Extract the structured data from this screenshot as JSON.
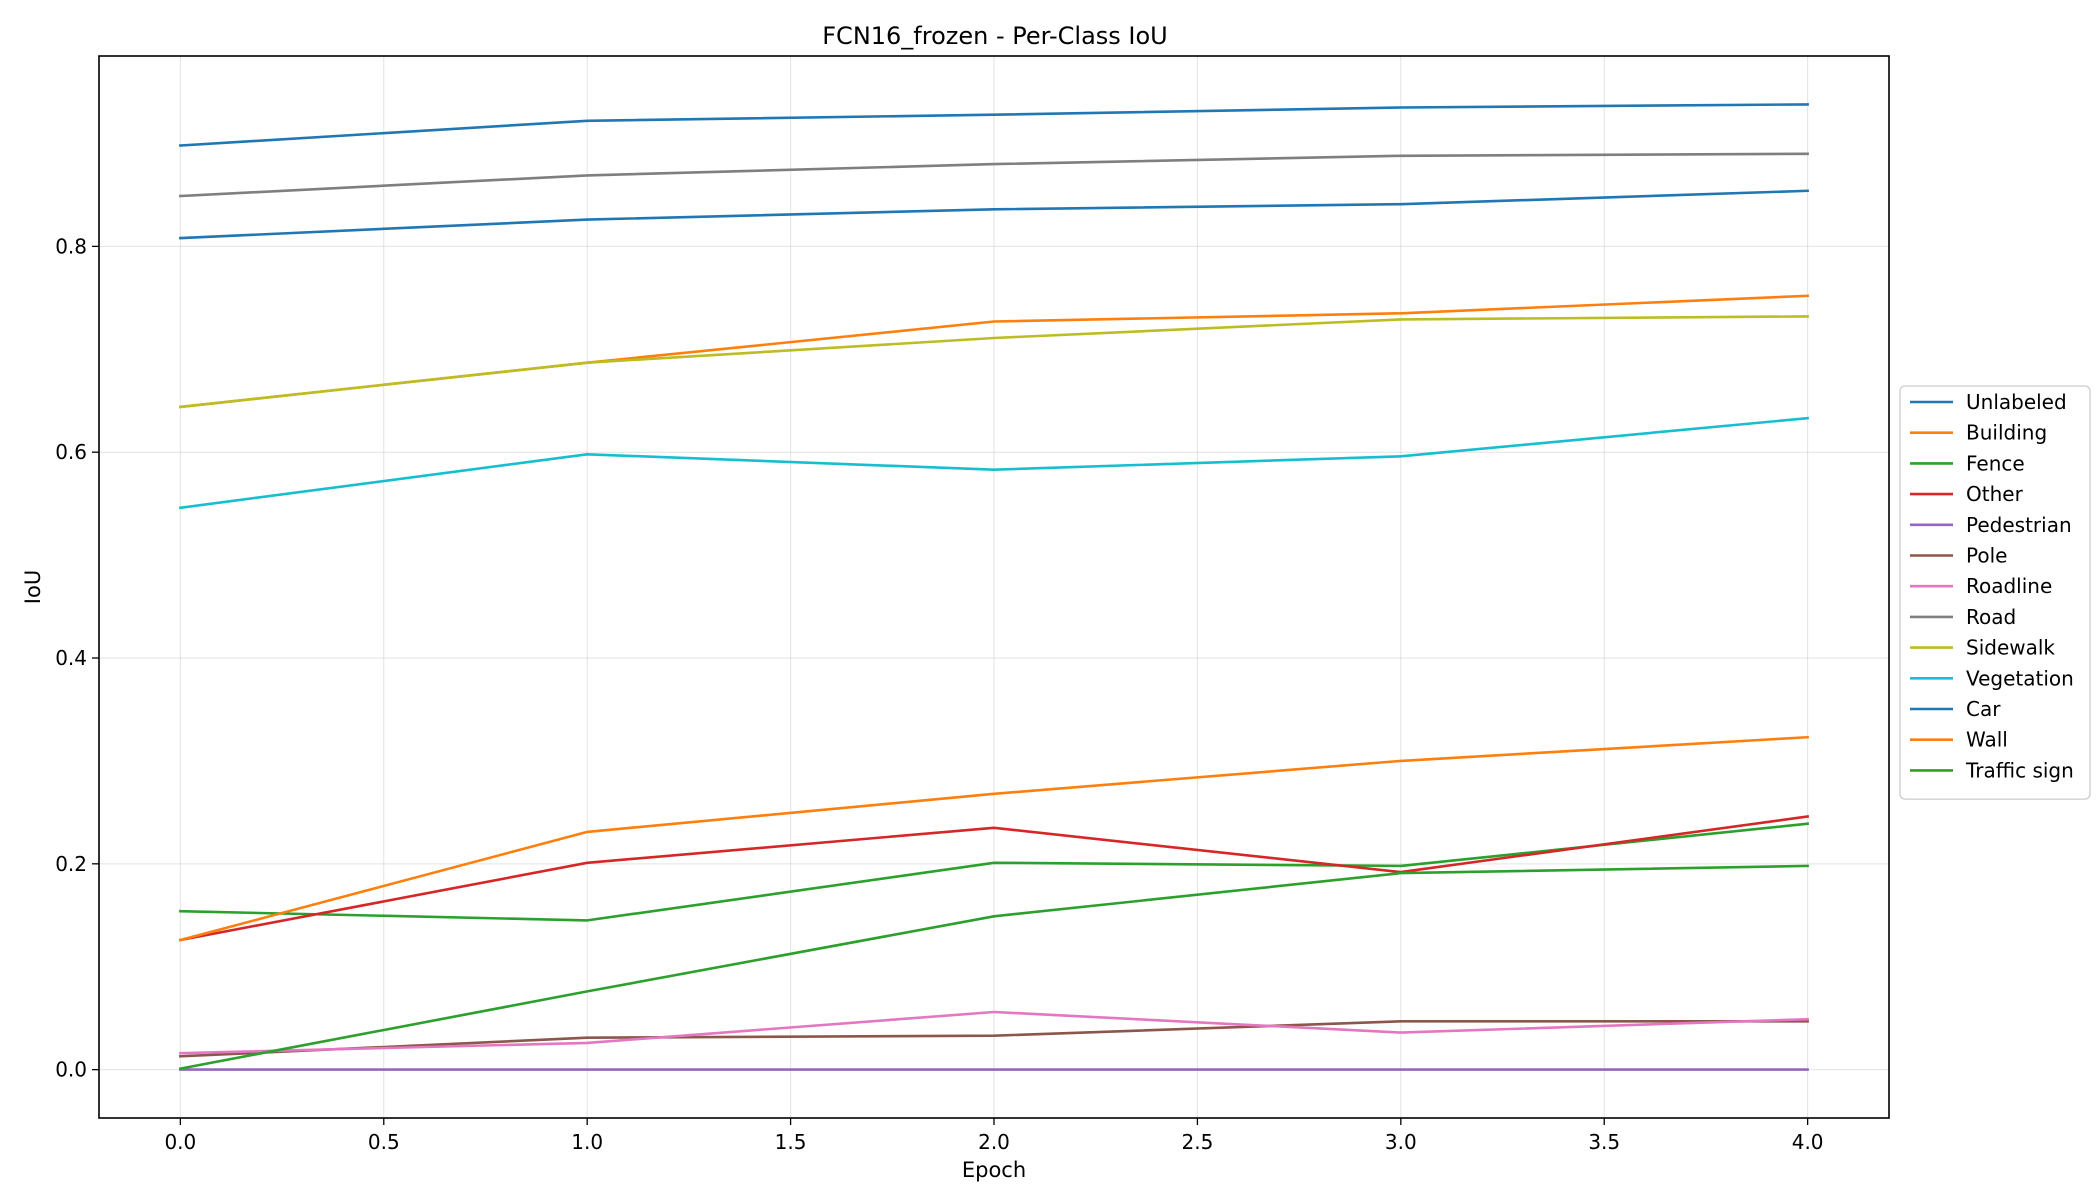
{
  "chart_data": {
    "type": "line",
    "title": "FCN16_frozen - Per-Class IoU",
    "xlabel": "Epoch",
    "ylabel": "IoU",
    "x": [
      0,
      1,
      2,
      3,
      4
    ],
    "xlim": [
      -0.2,
      4.2
    ],
    "ylim": [
      -0.047,
      0.985
    ],
    "xticks": [
      "0.0",
      "0.5",
      "1.0",
      "1.5",
      "2.0",
      "2.5",
      "3.0",
      "3.5",
      "4.0"
    ],
    "yticks": [
      "0.0",
      "0.2",
      "0.4",
      "0.6",
      "0.8"
    ],
    "grid": true,
    "legend_position": "center-right outside",
    "series": [
      {
        "name": "Unlabeled",
        "color": "#1f77b4",
        "values": [
          0.898,
          0.922,
          0.928,
          0.935,
          0.938
        ]
      },
      {
        "name": "Building",
        "color": "#ff7f0e",
        "values": [
          0.644,
          0.687,
          0.727,
          0.735,
          0.752
        ]
      },
      {
        "name": "Fence",
        "color": "#2ca02c",
        "values": [
          0.154,
          0.145,
          0.201,
          0.198,
          0.239
        ]
      },
      {
        "name": "Other",
        "color": "#d62728",
        "values": [
          0.126,
          0.201,
          0.235,
          0.192,
          0.246
        ]
      },
      {
        "name": "Pedestrian",
        "color": "#9467bd",
        "values": [
          0.0,
          0.0,
          0.0,
          0.0,
          0.0
        ]
      },
      {
        "name": "Pole",
        "color": "#8c564b",
        "values": [
          0.013,
          0.031,
          0.033,
          0.047,
          0.047
        ]
      },
      {
        "name": "Roadline",
        "color": "#e377c2",
        "values": [
          0.016,
          0.026,
          0.056,
          0.036,
          0.049
        ]
      },
      {
        "name": "Road",
        "color": "#7f7f7f",
        "values": [
          0.849,
          0.869,
          0.88,
          0.888,
          0.89
        ]
      },
      {
        "name": "Sidewalk",
        "color": "#bcbd22",
        "values": [
          0.644,
          0.687,
          0.711,
          0.729,
          0.732
        ]
      },
      {
        "name": "Vegetation",
        "color": "#17becf",
        "values": [
          0.546,
          0.598,
          0.583,
          0.596,
          0.633
        ]
      },
      {
        "name": "Car",
        "color": "#1f77b4",
        "values": [
          0.808,
          0.826,
          0.836,
          0.841,
          0.854
        ]
      },
      {
        "name": "Wall",
        "color": "#ff7f0e",
        "values": [
          0.126,
          0.231,
          0.268,
          0.3,
          0.323
        ]
      },
      {
        "name": "Traffic sign",
        "color": "#2ca02c",
        "values": [
          0.001,
          0.076,
          0.149,
          0.191,
          0.198
        ]
      }
    ]
  }
}
